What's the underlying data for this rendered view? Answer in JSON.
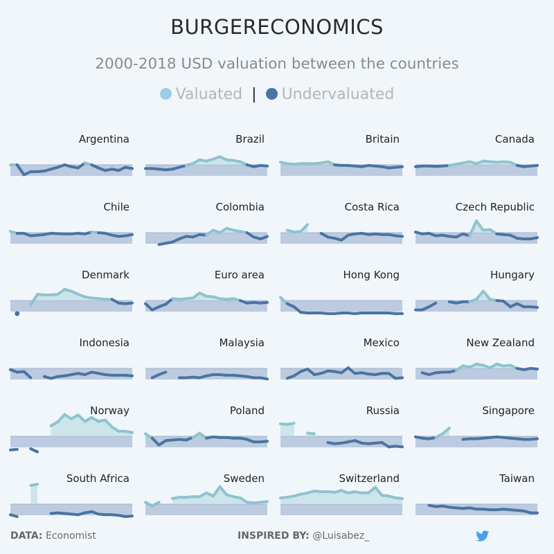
{
  "header": {
    "title": "BURGERECONOMICS",
    "subtitle": "2000-2018 USD valuation between the countries",
    "legend": {
      "valuated_label": "Valuated",
      "separator": "|",
      "undervaluated_label": "Undervaluated"
    }
  },
  "colors": {
    "valuated": "#8ec3cf",
    "undervaluated": "#4b73a3",
    "under_fill": "#b6c6dc",
    "over_fill": "#c5e1e6",
    "legend_valuated": "#9ecbe6",
    "legend_under": "#4b73a3",
    "twitter": "#4a9fe8"
  },
  "footer": {
    "data_prefix": "DATA:",
    "data_value": "Economist",
    "inspired_prefix": "INSPIRED BY:",
    "inspired_value": "@Luisabez_",
    "twitter_icon": "twitter-icon"
  },
  "chart_data": {
    "type": "area",
    "x": [
      2000,
      2001,
      2002,
      2003,
      2004,
      2005,
      2006,
      2007,
      2008,
      2009,
      2010,
      2011,
      2012,
      2013,
      2014,
      2015,
      2016,
      2017,
      2018
    ],
    "y_unit": "valuation vs USD (%)",
    "ylim": [
      -80,
      80
    ],
    "series": [
      {
        "name": "Argentina",
        "values": [
          0,
          0,
          -32,
          -22,
          -22,
          -20,
          -14,
          -8,
          0,
          -6,
          -10,
          6,
          0,
          -10,
          -18,
          -14,
          -18,
          -8,
          -12
        ]
      },
      {
        "name": "Brazil",
        "values": [
          -12,
          -12,
          -14,
          -16,
          -14,
          -8,
          -2,
          4,
          16,
          12,
          18,
          26,
          16,
          14,
          10,
          0,
          -6,
          -2,
          -4
        ]
      },
      {
        "name": "Britain",
        "values": [
          8,
          4,
          2,
          4,
          4,
          4,
          6,
          10,
          0,
          -2,
          -2,
          -4,
          -6,
          -2,
          -4,
          -6,
          -10,
          -8,
          -6
        ]
      },
      {
        "name": "Canada",
        "values": [
          -6,
          -4,
          -4,
          -5,
          -4,
          -2,
          2,
          6,
          10,
          4,
          12,
          10,
          8,
          10,
          8,
          -2,
          -6,
          -4,
          -2
        ]
      },
      {
        "name": "Chile",
        "values": [
          4,
          -2,
          -2,
          -10,
          -8,
          -6,
          -2,
          -3,
          -4,
          -4,
          -2,
          -4,
          2,
          0,
          -2,
          -8,
          -12,
          -10,
          -6
        ]
      },
      {
        "name": "Colombia",
        "values": [
          null,
          null,
          -38,
          -34,
          -30,
          -20,
          -12,
          -14,
          -6,
          -8,
          8,
          0,
          14,
          8,
          4,
          0,
          -14,
          -20,
          -12
        ]
      },
      {
        "name": "Costa Rica",
        "values": [
          null,
          8,
          2,
          4,
          26,
          null,
          -2,
          -14,
          -18,
          -24,
          -8,
          -4,
          -2,
          -6,
          -4,
          -6,
          -6,
          -10,
          -12
        ]
      },
      {
        "name": "Czech Republic",
        "values": [
          2,
          -4,
          -2,
          -10,
          -8,
          -12,
          -14,
          -4,
          -10,
          38,
          8,
          10,
          -4,
          -6,
          -8,
          -18,
          -20,
          -20,
          -16
        ]
      },
      {
        "name": "Denmark",
        "values": [
          null,
          -42,
          null,
          -14,
          20,
          18,
          18,
          20,
          36,
          30,
          20,
          12,
          8,
          6,
          4,
          4,
          -8,
          -10,
          -8
        ]
      },
      {
        "name": "Euro area",
        "values": [
          -10,
          -30,
          -20,
          -12,
          6,
          4,
          6,
          8,
          24,
          14,
          12,
          6,
          4,
          6,
          0,
          -8,
          -6,
          -8,
          -6
        ]
      },
      {
        "name": "Hong Kong",
        "values": [
          10,
          -10,
          -20,
          -38,
          -40,
          -40,
          -40,
          -42,
          -42,
          -40,
          -40,
          -42,
          -40,
          -40,
          -40,
          -40,
          -40,
          -42,
          -42
        ]
      },
      {
        "name": "Hungary",
        "values": [
          -30,
          -30,
          -20,
          -8,
          null,
          -4,
          -8,
          -4,
          -4,
          4,
          30,
          4,
          0,
          -2,
          -20,
          -10,
          -20,
          -20,
          -22
        ]
      },
      {
        "name": "Indonesia",
        "values": [
          -4,
          -12,
          -10,
          -30,
          null,
          -26,
          -32,
          -26,
          -24,
          -20,
          -16,
          -20,
          -12,
          -16,
          -20,
          -22,
          -22,
          -22,
          -24
        ]
      },
      {
        "name": "Malaysia",
        "values": [
          null,
          -30,
          -20,
          -12,
          null,
          -30,
          -30,
          -28,
          -30,
          -24,
          -20,
          -20,
          -22,
          -22,
          -24,
          -26,
          -30,
          -30,
          -34
        ]
      },
      {
        "name": "Mexico",
        "values": [
          null,
          -32,
          -24,
          -10,
          -2,
          -20,
          -16,
          -8,
          -10,
          -14,
          2,
          -16,
          -14,
          -18,
          -20,
          -16,
          -16,
          -32,
          -30
        ]
      },
      {
        "name": "New Zealand",
        "values": [
          null,
          -14,
          -20,
          -14,
          -12,
          -12,
          -6,
          8,
          4,
          14,
          10,
          2,
          14,
          8,
          10,
          0,
          -4,
          0,
          -2
        ]
      },
      {
        "name": "Norway",
        "values": [
          -44,
          -42,
          null,
          -40,
          -50,
          null,
          34,
          46,
          70,
          56,
          68,
          48,
          60,
          48,
          52,
          30,
          16,
          16,
          12
        ]
      },
      {
        "name": "Poland",
        "values": [
          8,
          -6,
          -28,
          -14,
          -12,
          -10,
          -12,
          -4,
          10,
          -6,
          -2,
          -4,
          -4,
          -6,
          -6,
          -10,
          -18,
          -18,
          -16
        ]
      },
      {
        "name": "Russia",
        "values": [
          40,
          38,
          42,
          null,
          10,
          8,
          null,
          -20,
          -24,
          -22,
          -18,
          -14,
          -22,
          -24,
          -22,
          -20,
          -34,
          -32,
          -34
        ]
      },
      {
        "name": "Singapore",
        "values": [
          -2,
          -6,
          -8,
          -4,
          8,
          26,
          null,
          -10,
          -8,
          -8,
          -6,
          -4,
          -2,
          -4,
          -6,
          -8,
          -10,
          -10,
          -8
        ]
      },
      {
        "name": "South Africa",
        "values": [
          -34,
          -40,
          null,
          60,
          64,
          null,
          -30,
          -28,
          -30,
          -32,
          -34,
          -28,
          -24,
          -32,
          -34,
          -34,
          -36,
          -40,
          -38
        ]
      },
      {
        "name": "Sweden",
        "values": [
          6,
          -6,
          6,
          null,
          18,
          22,
          22,
          24,
          24,
          36,
          26,
          56,
          30,
          24,
          20,
          6,
          4,
          6,
          8
        ]
      },
      {
        "name": "Switzerland",
        "values": [
          20,
          22,
          26,
          32,
          36,
          42,
          40,
          40,
          38,
          44,
          36,
          40,
          36,
          36,
          54,
          28,
          26,
          20,
          18
        ]
      },
      {
        "name": "Taiwan",
        "values": [
          null,
          null,
          -4,
          -8,
          -6,
          -10,
          -12,
          -14,
          -12,
          -16,
          -16,
          -18,
          -18,
          -16,
          -18,
          -20,
          -22,
          -28,
          -28
        ]
      }
    ]
  }
}
